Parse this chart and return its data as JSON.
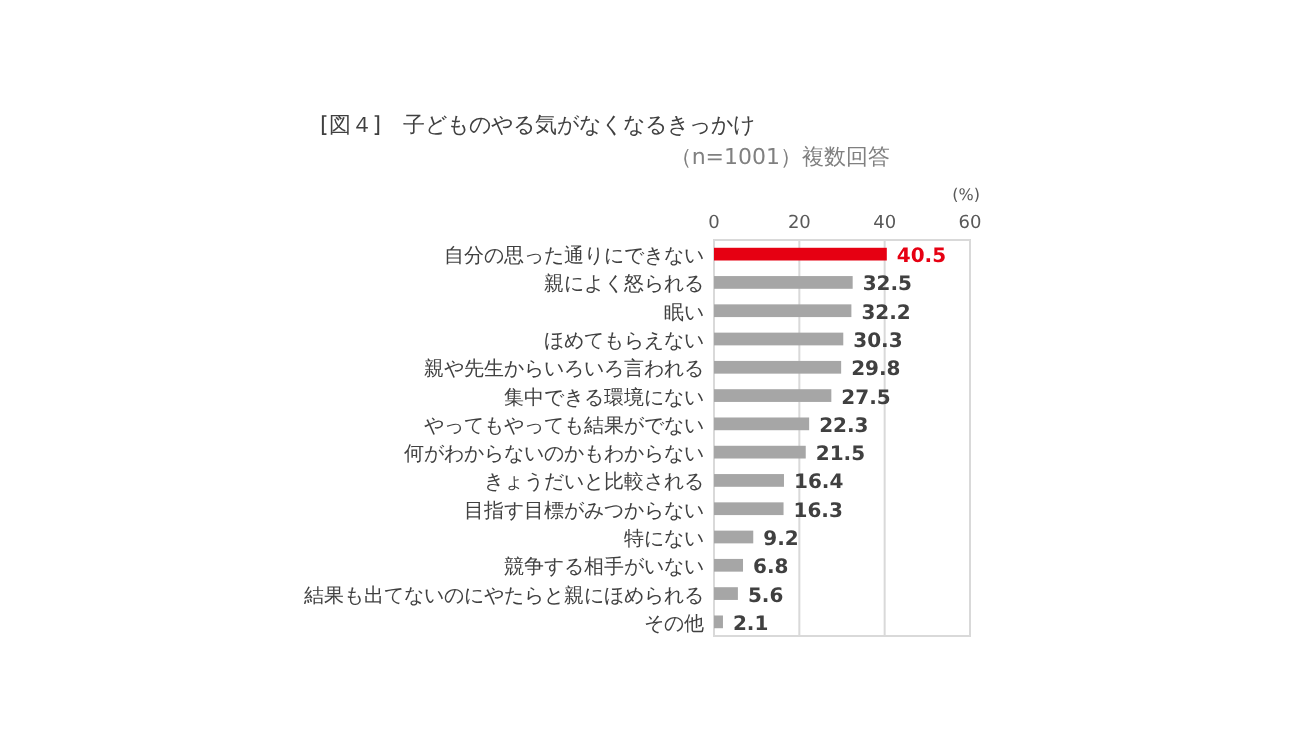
{
  "chart_data": {
    "type": "bar",
    "orientation": "horizontal",
    "title": "[図４]　子どものやる気がなくなるきっかけ",
    "subtitle": "（n=1001）複数回答",
    "xlabel": "(%)",
    "categories": [
      "自分の思った通りにできない",
      "親によく怒られる",
      "眠い",
      "ほめてもらえない",
      "親や先生からいろいろ言われる",
      "集中できる環境にない",
      "やってもやっても結果がでない",
      "何がわからないのかもわからない",
      "きょうだいと比較される",
      "目指す目標がみつからない",
      "特にない",
      "競争する相手がいない",
      "結果も出てないのにやたらと親にほめられる",
      "その他"
    ],
    "values": [
      40.5,
      32.5,
      32.2,
      30.3,
      29.8,
      27.5,
      22.3,
      21.5,
      16.4,
      16.3,
      9.2,
      6.8,
      5.6,
      2.1
    ],
    "colors": [
      "#e60012",
      "#a6a6a6",
      "#a6a6a6",
      "#a6a6a6",
      "#a6a6a6",
      "#a6a6a6",
      "#a6a6a6",
      "#a6a6a6",
      "#a6a6a6",
      "#a6a6a6",
      "#a6a6a6",
      "#a6a6a6",
      "#a6a6a6",
      "#a6a6a6"
    ],
    "xlim": [
      0,
      60
    ],
    "xticks": [
      0,
      20,
      40,
      60
    ],
    "grid": "x",
    "data_labels": true
  }
}
